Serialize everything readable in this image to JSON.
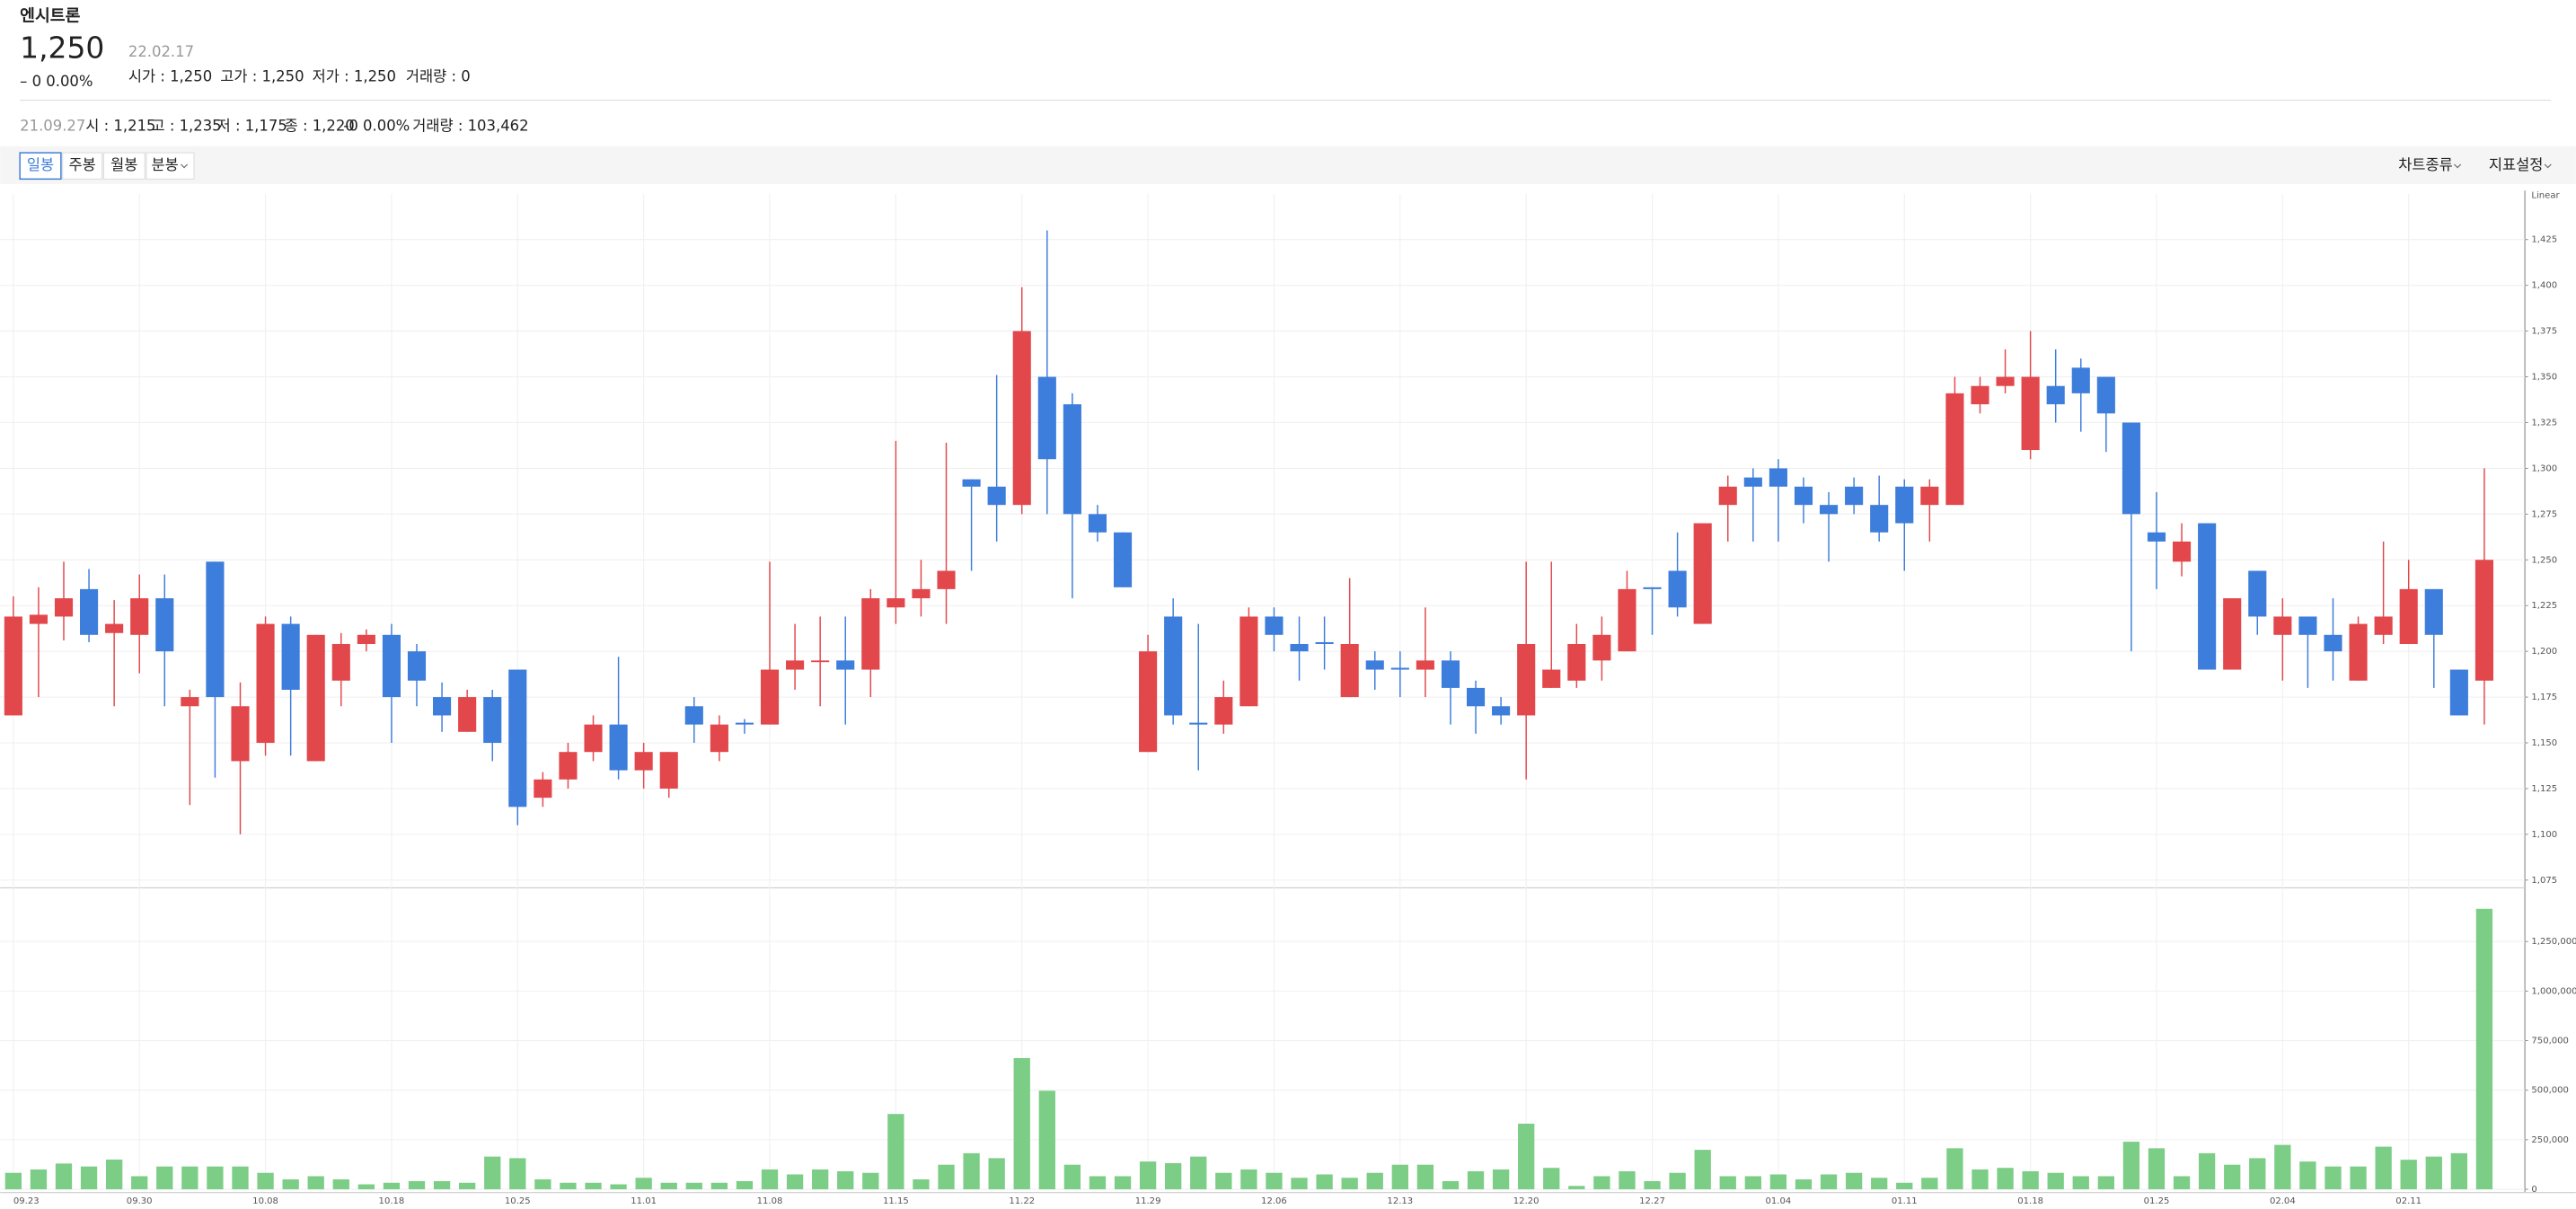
{
  "header": {
    "name": "엔시트론",
    "price": "1,250",
    "date": "22.02.17",
    "change": "– 0 0.00%",
    "open": "시가 : 1,250",
    "high": "고가 : 1,250",
    "low": "저가 : 1,250",
    "volume": "거래량 : 0"
  },
  "info": {
    "date": "21.09.27",
    "open": "시 : 1,215",
    "high": "고 : 1,235",
    "low": "저 : 1,175",
    "close": "종 : 1,220",
    "change": "-0 0.00%",
    "volume": "거래량 : 103,462"
  },
  "toolbar": {
    "periods": [
      "일봉",
      "주봉",
      "월봉",
      "분봉"
    ],
    "chart_type": "차트종류",
    "indicators": "지표설정"
  },
  "chart_data": {
    "type": "candlestick",
    "scale_label": "Linear",
    "grid": true,
    "up_color": "#e2474b",
    "down_color": "#3d7ddb",
    "volume_color": "#7ccd86",
    "categories": [
      "09.23",
      null,
      null,
      null,
      null,
      "09.30",
      null,
      null,
      null,
      null,
      "10.08",
      null,
      null,
      null,
      null,
      "10.18",
      null,
      null,
      null,
      null,
      "10.25",
      null,
      null,
      null,
      null,
      "11.01",
      null,
      null,
      null,
      null,
      "11.08",
      null,
      null,
      null,
      null,
      "11.15",
      null,
      null,
      null,
      null,
      "11.22",
      null,
      null,
      null,
      null,
      "11.29",
      null,
      null,
      null,
      null,
      "12.06",
      null,
      null,
      null,
      null,
      "12.13",
      null,
      null,
      null,
      null,
      "12.20",
      null,
      null,
      null,
      null,
      "12.27",
      null,
      null,
      null,
      null,
      "01.04",
      null,
      null,
      null,
      null,
      "01.11",
      null,
      null,
      null,
      null,
      "01.18",
      null,
      null,
      null,
      null,
      "01.25",
      null,
      null,
      null,
      null,
      "02.04",
      null,
      null,
      null,
      null,
      "02.11",
      null,
      null,
      null
    ],
    "open": [
      1165,
      1215,
      1219,
      1234,
      1210,
      1209,
      1229,
      1170,
      1249,
      1140,
      1150,
      1215,
      1140,
      1184,
      1204,
      1209,
      1200,
      1175,
      1156,
      1175,
      1190,
      1120,
      1130,
      1145,
      1160,
      1135,
      1125,
      1170,
      1145,
      1161,
      1160,
      1190,
      1195,
      1195,
      1190,
      1224,
      1229,
      1234,
      1294,
      1290,
      1280,
      1350,
      1335,
      1275,
      1265,
      1145,
      1219,
      1161,
      1160,
      1170,
      1219,
      1204,
      1205,
      1175,
      1195,
      1191,
      1190,
      1195,
      1180,
      1170,
      1165,
      1180,
      1184,
      1195,
      1200,
      1235,
      1244,
      1215,
      1280,
      1295,
      1300,
      1290,
      1280,
      1290,
      1280,
      1290,
      1280,
      1280,
      1335,
      1345,
      1310,
      1345,
      1355,
      1350,
      1325,
      1265,
      1249,
      1270,
      1190,
      1244,
      1209,
      1219,
      1209,
      1184,
      1209,
      1204,
      1234,
      1190,
      1184
    ],
    "high": [
      1230,
      1235,
      1249,
      1245,
      1228,
      1242,
      1242,
      1179,
      1249,
      1183,
      1219,
      1219,
      1209,
      1210,
      1212,
      1215,
      1204,
      1183,
      1179,
      1179,
      1190,
      1134,
      1150,
      1165,
      1197,
      1150,
      1145,
      1175,
      1165,
      1163,
      1249,
      1215,
      1219,
      1219,
      1234,
      1315,
      1250,
      1314,
      1294,
      1351,
      1399,
      1430,
      1341,
      1280,
      1265,
      1209,
      1229,
      1215,
      1184,
      1224,
      1224,
      1219,
      1219,
      1240,
      1200,
      1200,
      1224,
      1200,
      1184,
      1175,
      1249,
      1249,
      1215,
      1219,
      1244,
      1235,
      1265,
      1270,
      1296,
      1300,
      1305,
      1295,
      1287,
      1295,
      1296,
      1294,
      1294,
      1350,
      1350,
      1365,
      1375,
      1365,
      1360,
      1350,
      1325,
      1287,
      1270,
      1270,
      1229,
      1244,
      1229,
      1219,
      1229,
      1219,
      1260,
      1250,
      1234,
      1190,
      1300
    ],
    "low": [
      1165,
      1175,
      1206,
      1205,
      1170,
      1188,
      1170,
      1116,
      1131,
      1100,
      1143,
      1143,
      1140,
      1170,
      1200,
      1150,
      1170,
      1156,
      1156,
      1140,
      1105,
      1115,
      1125,
      1140,
      1130,
      1125,
      1120,
      1150,
      1140,
      1155,
      1160,
      1179,
      1170,
      1160,
      1175,
      1215,
      1219,
      1215,
      1244,
      1260,
      1275,
      1275,
      1229,
      1260,
      1235,
      1145,
      1160,
      1135,
      1155,
      1170,
      1200,
      1184,
      1190,
      1175,
      1179,
      1175,
      1175,
      1160,
      1155,
      1160,
      1130,
      1180,
      1180,
      1184,
      1200,
      1209,
      1219,
      1215,
      1260,
      1260,
      1260,
      1270,
      1249,
      1275,
      1260,
      1244,
      1260,
      1280,
      1330,
      1341,
      1305,
      1325,
      1320,
      1309,
      1200,
      1234,
      1241,
      1190,
      1190,
      1209,
      1184,
      1180,
      1184,
      1184,
      1204,
      1204,
      1180,
      1165,
      1160
    ],
    "close": [
      1219,
      1220,
      1229,
      1209,
      1215,
      1229,
      1200,
      1175,
      1175,
      1170,
      1215,
      1179,
      1209,
      1204,
      1209,
      1175,
      1184,
      1165,
      1175,
      1150,
      1115,
      1130,
      1145,
      1160,
      1135,
      1145,
      1145,
      1160,
      1160,
      1160,
      1190,
      1195,
      1195,
      1190,
      1229,
      1229,
      1234,
      1244,
      1290,
      1280,
      1375,
      1305,
      1275,
      1265,
      1235,
      1200,
      1165,
      1160,
      1175,
      1219,
      1209,
      1200,
      1204,
      1204,
      1190,
      1190,
      1195,
      1180,
      1170,
      1165,
      1204,
      1190,
      1204,
      1209,
      1234,
      1234,
      1224,
      1270,
      1290,
      1290,
      1290,
      1280,
      1275,
      1280,
      1265,
      1270,
      1290,
      1341,
      1345,
      1350,
      1350,
      1335,
      1341,
      1330,
      1275,
      1260,
      1260,
      1190,
      1229,
      1219,
      1219,
      1209,
      1200,
      1215,
      1219,
      1234,
      1209,
      1165,
      1250
    ],
    "volume": [
      83000,
      100000,
      130000,
      115000,
      150000,
      66000,
      115000,
      115000,
      115000,
      115000,
      83000,
      50000,
      66000,
      50000,
      25000,
      33000,
      41000,
      41000,
      33000,
      165000,
      157000,
      50000,
      33000,
      33000,
      25000,
      58000,
      33000,
      33000,
      33000,
      41000,
      100000,
      75000,
      100000,
      91000,
      83000,
      380000,
      50000,
      124000,
      182000,
      157000,
      662000,
      497000,
      124000,
      66000,
      66000,
      140000,
      132000,
      165000,
      83000,
      100000,
      83000,
      58000,
      75000,
      58000,
      83000,
      124000,
      124000,
      41000,
      91000,
      100000,
      331000,
      108000,
      17000,
      66000,
      91000,
      41000,
      83000,
      199000,
      66000,
      66000,
      75000,
      50000,
      75000,
      83000,
      58000,
      33000,
      58000,
      207000,
      100000,
      108000,
      91000,
      83000,
      66000,
      66000,
      240000,
      207000,
      66000,
      182000,
      124000,
      157000,
      224000,
      140000,
      115000,
      115000,
      215000,
      149000,
      165000,
      182000,
      1415000
    ],
    "ylim": [
      1073,
      1450
    ],
    "yticks": [
      {
        "value": 1075,
        "label": "1,075"
      },
      {
        "value": 1100,
        "label": "1,100"
      },
      {
        "value": 1125,
        "label": "1,125"
      },
      {
        "value": 1150,
        "label": "1,150"
      },
      {
        "value": 1175,
        "label": "1,175"
      },
      {
        "value": 1200,
        "label": "1,200"
      },
      {
        "value": 1225,
        "label": "1,225"
      },
      {
        "value": 1250,
        "label": "1,250"
      },
      {
        "value": 1275,
        "label": "1,275"
      },
      {
        "value": 1300,
        "label": "1,300"
      },
      {
        "value": 1325,
        "label": "1,325"
      },
      {
        "value": 1350,
        "label": "1,350"
      },
      {
        "value": 1375,
        "label": "1,375"
      },
      {
        "value": 1400,
        "label": "1,400"
      },
      {
        "value": 1425,
        "label": "1,425"
      }
    ],
    "y2lim": [
      0,
      1500000
    ],
    "y2ticks": [
      0,
      {
        "value": 250000,
        "label": "250,000"
      },
      {
        "value": 500000,
        "label": "500,000"
      },
      {
        "value": 750000,
        "label": "750,000"
      },
      {
        "value": 1000000,
        "label": "1,000,000"
      },
      {
        "value": 1250000,
        "label": "1,250,000"
      }
    ]
  }
}
